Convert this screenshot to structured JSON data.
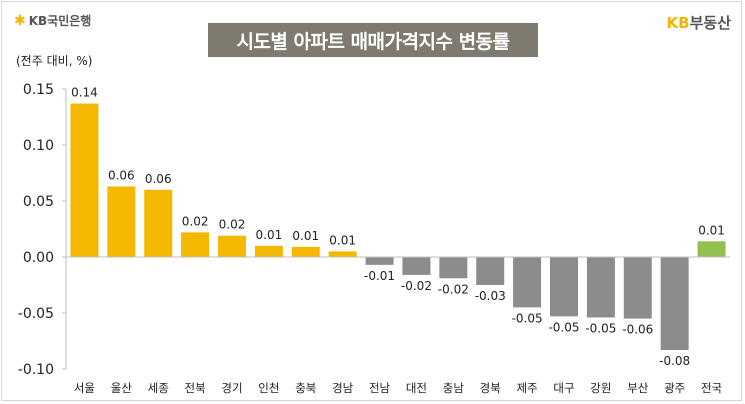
{
  "header": {
    "bank_logo_text": "KB국민은행",
    "title": "시도별 아파트 매매가격지수 변동률",
    "brand_kb": "KB",
    "brand_rest": "부동산",
    "unit_label": "(전주 대비, %)"
  },
  "chart_data": {
    "type": "bar",
    "title": "시도별 아파트 매매가격지수 변동률",
    "ylabel": "(전주 대비, %)",
    "xlabel": "",
    "ylim": [
      -0.1,
      0.15
    ],
    "yticks": [
      0.15,
      0.1,
      0.05,
      0.0,
      -0.05,
      -0.1
    ],
    "ytick_labels": [
      "0.15",
      "0.10",
      "0.05",
      "0.00",
      "-0.05",
      "-0.10"
    ],
    "grid": false,
    "categories": [
      "서울",
      "울산",
      "세종",
      "전북",
      "경기",
      "인천",
      "충북",
      "경남",
      "전남",
      "대전",
      "충남",
      "경북",
      "제주",
      "대구",
      "강원",
      "부산",
      "광주",
      "전국"
    ],
    "values": [
      0.137,
      0.063,
      0.06,
      0.022,
      0.019,
      0.01,
      0.009,
      0.005,
      -0.007,
      -0.016,
      -0.019,
      -0.025,
      -0.045,
      -0.053,
      -0.054,
      -0.055,
      -0.083,
      0.014
    ],
    "data_labels": [
      "0.14",
      "0.06",
      "0.06",
      "0.02",
      "0.02",
      "0.01",
      "0.01",
      "0.01",
      "-0.01",
      "-0.02",
      "-0.02",
      "-0.03",
      "-0.05",
      "-0.05",
      "-0.05",
      "-0.06",
      "-0.08",
      "0.01"
    ],
    "colors": {
      "positive": "#f5b800",
      "negative": "#8c8c8c",
      "national": "#92c050",
      "axis": "#bfbfbf"
    }
  }
}
